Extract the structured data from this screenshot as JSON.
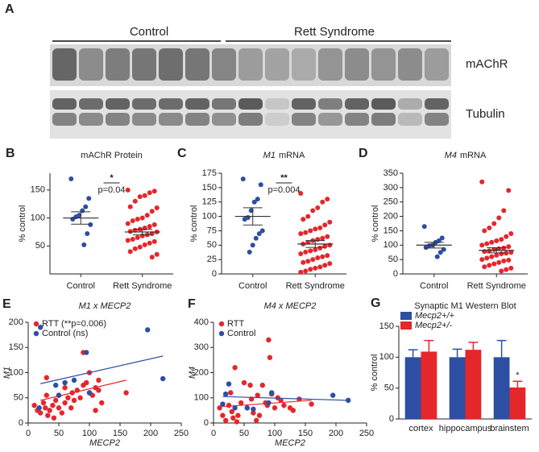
{
  "blot": {
    "panel_label": "A",
    "groups": [
      "Control",
      "Rett Syndrome"
    ],
    "bands": [
      "mAChR",
      "Tubulin"
    ]
  },
  "chart_data": [
    {
      "type": "dot",
      "panel_label": "B",
      "title": {
        "rest": "mAChR Protein"
      },
      "ylabel": "% control",
      "categories": [
        "Control",
        "Rett Syndrome"
      ],
      "groups": [
        {
          "color": "#2d4fa3",
          "values": [
            170,
            135,
            120,
            113,
            105,
            102,
            98,
            88,
            72,
            52
          ],
          "mean": 100,
          "sem": 11
        },
        {
          "color": "#e5262b",
          "values": [
            150,
            148,
            145,
            140,
            138,
            130,
            120,
            118,
            112,
            105,
            100,
            98,
            95,
            90,
            88,
            85,
            82,
            80,
            78,
            76,
            75,
            72,
            70,
            68,
            65,
            62,
            60,
            58,
            55,
            52,
            48,
            45,
            40,
            35,
            30
          ],
          "mean": 75,
          "sem": 5
        }
      ],
      "significance": {
        "stars": "*",
        "p": "p=0.04"
      },
      "ylim": [
        0,
        180
      ],
      "yticks": [
        50,
        100,
        150
      ]
    },
    {
      "type": "dot",
      "panel_label": "C",
      "title": {
        "gene": "M1",
        "rest": "mRNA"
      },
      "ylabel": "% control",
      "categories": [
        "Control",
        "Rett Syndrome"
      ],
      "groups": [
        {
          "color": "#2d4fa3",
          "values": [
            165,
            155,
            130,
            125,
            110,
            98,
            95,
            75,
            70,
            62,
            50,
            38
          ],
          "mean": 100,
          "sem": 15
        },
        {
          "color": "#e5262b",
          "values": [
            140,
            130,
            125,
            115,
            110,
            100,
            95,
            90,
            85,
            80,
            78,
            75,
            72,
            70,
            65,
            62,
            60,
            58,
            55,
            52,
            50,
            48,
            45,
            42,
            40,
            38,
            35,
            32,
            30,
            28,
            25,
            22,
            20,
            18,
            15,
            12,
            10,
            8,
            5,
            3
          ],
          "mean": 52,
          "sem": 6
        }
      ],
      "significance": {
        "stars": "**",
        "p": "p=0.004"
      },
      "ylim": [
        0,
        175
      ],
      "yticks": [
        0,
        25,
        50,
        75,
        100,
        125,
        150,
        175
      ]
    },
    {
      "type": "dot",
      "panel_label": "D",
      "title": {
        "gene": "M4",
        "rest": "mRNA"
      },
      "ylabel": "% control",
      "categories": [
        "Control",
        "Rett Syndrome"
      ],
      "groups": [
        {
          "color": "#2d4fa3",
          "values": [
            165,
            125,
            115,
            110,
            100,
            98,
            92,
            85,
            75,
            60
          ],
          "mean": 100,
          "sem": 10
        },
        {
          "color": "#e5262b",
          "values": [
            320,
            290,
            220,
            195,
            175,
            160,
            150,
            140,
            130,
            120,
            115,
            110,
            105,
            100,
            95,
            90,
            88,
            85,
            80,
            78,
            75,
            72,
            70,
            65,
            60,
            55,
            50,
            48,
            45,
            40,
            35,
            30,
            25,
            20,
            15,
            10
          ],
          "mean": 82,
          "sem": 9
        }
      ],
      "ylim": [
        0,
        350
      ],
      "yticks": [
        0,
        50,
        100,
        150,
        200,
        250,
        300,
        350
      ]
    },
    {
      "type": "scatter",
      "panel_label": "E",
      "title": "M1 x MECP2",
      "xlabel": "MECP2",
      "ylabel": "M1",
      "series": [
        {
          "name": "RTT (**p=0.006)",
          "color": "#e5262b",
          "x": [
            10,
            15,
            20,
            25,
            28,
            30,
            32,
            35,
            40,
            42,
            45,
            50,
            50,
            55,
            60,
            60,
            65,
            70,
            72,
            75,
            80,
            85,
            90,
            95,
            100,
            105,
            110,
            115,
            110,
            120,
            100,
            30,
            160,
            115,
            90
          ],
          "y": [
            35,
            25,
            20,
            40,
            30,
            55,
            15,
            25,
            35,
            10,
            45,
            30,
            55,
            20,
            40,
            70,
            50,
            30,
            60,
            45,
            65,
            50,
            75,
            80,
            60,
            55,
            70,
            65,
            25,
            40,
            100,
            90,
            60,
            85,
            140
          ],
          "fit": {
            "x": [
              20,
              160
            ],
            "y": [
              45,
              85
            ]
          }
        },
        {
          "name": "Control (ns)",
          "color": "#2d4fa3",
          "x": [
            20,
            18,
            45,
            50,
            60,
            75,
            95,
            100,
            195,
            220
          ],
          "y": [
            190,
            30,
            75,
            55,
            80,
            85,
            140,
            60,
            185,
            88
          ],
          "fit": {
            "x": [
              20,
              220
            ],
            "y": [
              78,
              133
            ]
          }
        }
      ],
      "xlim": [
        0,
        250
      ],
      "xticks": [
        0,
        50,
        100,
        150,
        200,
        250
      ],
      "ylim": [
        0,
        200
      ],
      "yticks": [
        0,
        50,
        100,
        150,
        200
      ]
    },
    {
      "type": "scatter",
      "panel_label": "F",
      "title": "M4 x MECP2",
      "xlabel": "MECP2",
      "ylabel": "M4",
      "series": [
        {
          "name": "RTT",
          "color": "#e5262b",
          "x": [
            10,
            15,
            20,
            25,
            28,
            30,
            32,
            35,
            38,
            40,
            45,
            50,
            55,
            60,
            62,
            65,
            70,
            72,
            75,
            80,
            85,
            88,
            90,
            92,
            95,
            100,
            105,
            110,
            115,
            125,
            130,
            140,
            160
          ],
          "y": [
            60,
            30,
            10,
            70,
            120,
            45,
            20,
            220,
            5,
            30,
            80,
            160,
            60,
            150,
            95,
            40,
            10,
            110,
            30,
            150,
            80,
            70,
            330,
            260,
            115,
            60,
            100,
            90,
            70,
            60,
            50,
            95,
            75
          ],
          "fit": {
            "x": [
              15,
              160
            ],
            "y": [
              65,
              90
            ]
          }
        },
        {
          "name": "Control",
          "color": "#2d4fa3",
          "x": [
            15,
            20,
            25,
            35,
            55,
            65,
            90,
            95,
            195,
            220
          ],
          "y": [
            75,
            115,
            155,
            60,
            60,
            55,
            80,
            120,
            110,
            90
          ],
          "fit": {
            "x": [
              15,
              220
            ],
            "y": [
              105,
              90
            ]
          }
        }
      ],
      "xlim": [
        0,
        250
      ],
      "xticks": [
        0,
        50,
        100,
        150,
        200,
        250
      ],
      "ylim": [
        0,
        400
      ],
      "yticks": [
        0,
        100,
        200,
        300,
        400
      ]
    },
    {
      "type": "bar",
      "panel_label": "G",
      "title": "Synaptic  M1 Western  Blot",
      "ylabel": "% control",
      "categories": [
        "cortex",
        "hippocampus",
        "brainstem"
      ],
      "series": [
        {
          "name": "Mecp2+/+",
          "color": "#2d4fa3",
          "values": [
            100,
            100,
            100
          ],
          "errors": [
            12,
            13,
            27
          ]
        },
        {
          "name": "Mecp2+/-",
          "color": "#e5262b",
          "values": [
            109,
            112,
            51
          ],
          "errors": [
            18,
            12,
            10
          ],
          "significance": [
            null,
            null,
            "*"
          ]
        }
      ],
      "ylim": [
        0,
        150
      ],
      "yticks": [
        0,
        50,
        100,
        150
      ]
    }
  ]
}
